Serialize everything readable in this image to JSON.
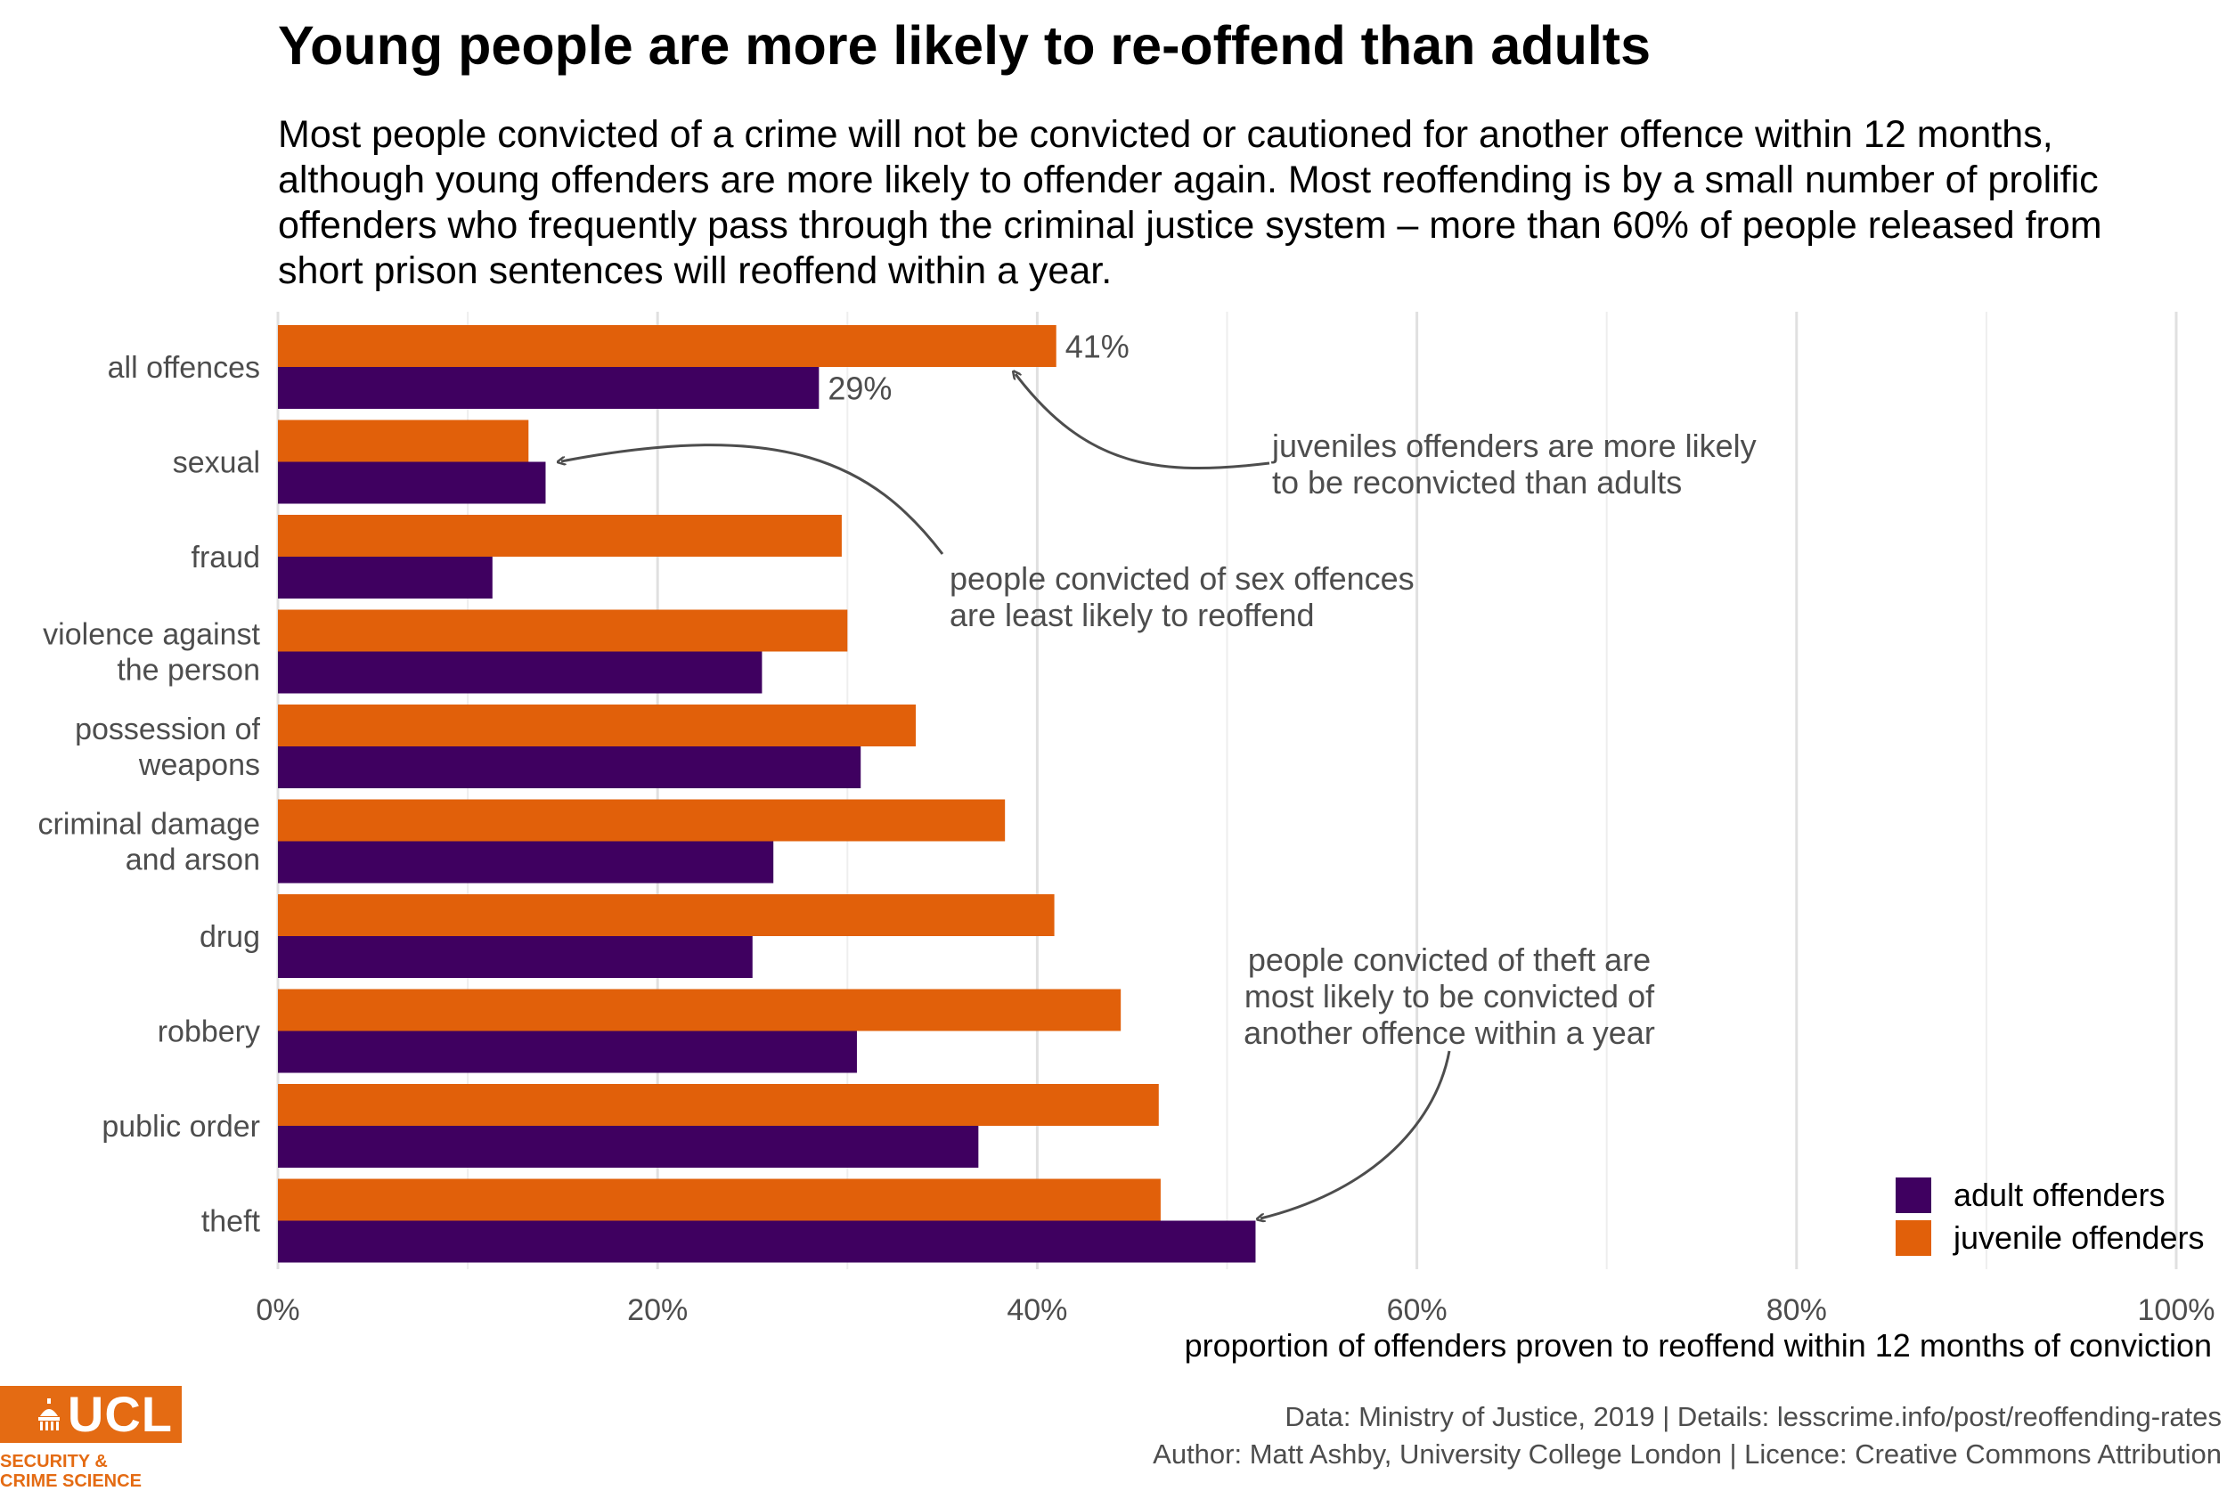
{
  "title": "Young people are more likely to re-offend than adults",
  "subtitle": "Most people convicted of a crime will not be convicted or cautioned for another offence within 12 months, although young offenders are more likely to offender again. Most reoffending is by a small number of prolific offenders who frequently pass through the criminal justice system – more than 60% of people released from short prison sentences will reoffend within a year.",
  "chart_data": {
    "type": "bar",
    "orientation": "horizontal",
    "categories": [
      [
        "all offences"
      ],
      [
        "sexual"
      ],
      [
        "fraud"
      ],
      [
        "violence against",
        "the person"
      ],
      [
        "possession of",
        "weapons"
      ],
      [
        "criminal damage",
        "and arson"
      ],
      [
        "drug"
      ],
      [
        "robbery"
      ],
      [
        "public order"
      ],
      [
        "theft"
      ]
    ],
    "series": [
      {
        "name": "juvenile offenders",
        "color": "#e1600a",
        "values": [
          0.41,
          0.132,
          0.297,
          0.3,
          0.336,
          0.383,
          0.409,
          0.444,
          0.464,
          0.465
        ]
      },
      {
        "name": "adult offenders",
        "color": "#3f0060",
        "values": [
          0.285,
          0.141,
          0.113,
          0.255,
          0.307,
          0.261,
          0.25,
          0.305,
          0.369,
          0.515
        ]
      }
    ],
    "xlim": [
      0,
      1
    ],
    "x_ticks": [
      0,
      0.2,
      0.4,
      0.6,
      0.8,
      1.0
    ],
    "x_tick_labels": [
      "0%",
      "20%",
      "40%",
      "60%",
      "80%",
      "100%"
    ],
    "xlabel": "proportion of offenders proven to reoffend within 12 months of conviction",
    "data_labels": [
      {
        "category": "all offences",
        "series": "juvenile offenders",
        "text": "41%"
      },
      {
        "category": "all offences",
        "series": "adult offenders",
        "text": "29%"
      }
    ],
    "annotations": [
      {
        "lines": [
          "juveniles offenders are more likely",
          "to be reconvicted than adults"
        ],
        "target": "all offences"
      },
      {
        "lines": [
          "people convicted of sex offences",
          "are least likely to reoffend"
        ],
        "target": "sexual"
      },
      {
        "lines": [
          "people convicted of theft are",
          "most likely to be convicted of",
          "another offence within a year"
        ],
        "target": "theft"
      }
    ],
    "legend": {
      "position": "bottom-right",
      "items": [
        {
          "label": "adult offenders",
          "color": "#3f0060"
        },
        {
          "label": "juvenile offenders",
          "color": "#e1600a"
        }
      ]
    },
    "grid": true
  },
  "credits": [
    "Data: Ministry of Justice, 2019 |  Details: lesscrime.info/post/reoffending-rates",
    "Author: Matt Ashby, University College London |  Licence: Creative Commons Attribution"
  ],
  "logo": {
    "name": "ucl-logo",
    "text": "UCL",
    "sub_lines": [
      "SECURITY &",
      "CRIME SCIENCE"
    ],
    "color": "#e46b13"
  }
}
